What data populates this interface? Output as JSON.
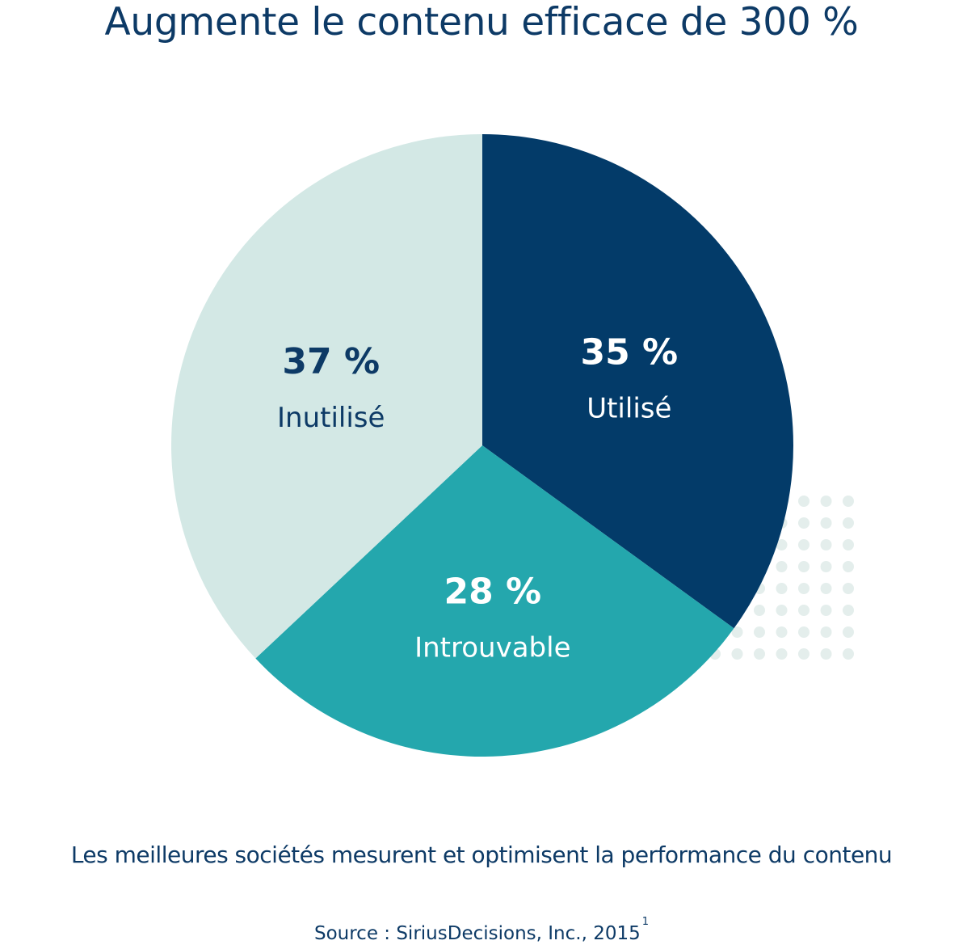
{
  "title": "Augmente le contenu efficace de 300 %",
  "chart_data": {
    "type": "pie",
    "slices": [
      {
        "pct_label": "35 %",
        "label": "Utilisé",
        "value": 35,
        "color": "#033b69",
        "text_color": "#ffffff"
      },
      {
        "pct_label": "28 %",
        "label": "Introuvable",
        "value": 28,
        "color": "#24a7ad",
        "text_color": "#ffffff"
      },
      {
        "pct_label": "37 %",
        "label": "Inutilisé",
        "value": 37,
        "color": "#d3e8e5",
        "text_color": "#0d3a66"
      }
    ]
  },
  "caption": "Les meilleures sociétés mesurent et optimisent la performance du contenu",
  "source": {
    "text": "Source : SiriusDecisions, Inc., 2015",
    "footnote": "1"
  },
  "colors": {
    "text": "#0d3a66",
    "dots": "#e4eeec"
  }
}
